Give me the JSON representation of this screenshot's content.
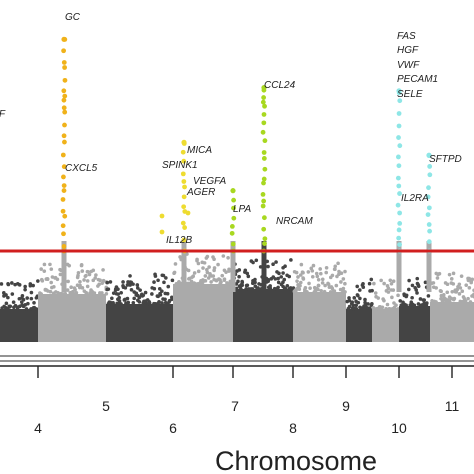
{
  "chart_data": {
    "type": "scatter",
    "subtype": "manhattan",
    "xlabel": "Chromosome",
    "visible_chromosomes": [
      "4",
      "5",
      "6",
      "7",
      "8",
      "9",
      "10",
      "11"
    ],
    "significance_threshold_color": "#d11f1f",
    "colors": {
      "dark": "#444444",
      "light": "#aaaaaa",
      "hit_orange": "#f0b21a",
      "hit_yellow": "#eedc30",
      "hit_lime": "#a8d820",
      "hit_cyan": "#8ee6e6"
    },
    "signal_columns": [
      {
        "chromosome": "4",
        "color": "hit_orange",
        "y_top": 0.94
      },
      {
        "chromosome": "6",
        "color": "hit_yellow",
        "y_top": 0.62
      },
      {
        "chromosome": "7",
        "color": "hit_lime",
        "y_top": 0.47
      },
      {
        "chromosome": "7",
        "color": "hit_lime",
        "y_top": 0.79
      },
      {
        "chromosome": "10",
        "color": "hit_cyan",
        "y_top": 0.78
      },
      {
        "chromosome": "10",
        "color": "hit_cyan",
        "y_top": 0.58
      }
    ],
    "gene_labels": [
      {
        "text": "GC",
        "chromosome": "4"
      },
      {
        "text": "CXCL5",
        "chromosome": "4"
      },
      {
        "text": "MICA",
        "chromosome": "6"
      },
      {
        "text": "SPINK1",
        "chromosome": "6"
      },
      {
        "text": "VEGFA",
        "chromosome": "6"
      },
      {
        "text": "AGER",
        "chromosome": "6"
      },
      {
        "text": "IL12B",
        "chromosome": "6"
      },
      {
        "text": "LPA",
        "chromosome": "7"
      },
      {
        "text": "CCL24",
        "chromosome": "7"
      },
      {
        "text": "NRCAM",
        "chromosome": "7"
      },
      {
        "text": "FAS",
        "chromosome": "10"
      },
      {
        "text": "HGF",
        "chromosome": "10"
      },
      {
        "text": "VWF",
        "chromosome": "10"
      },
      {
        "text": "PECAM1",
        "chromosome": "10"
      },
      {
        "text": "SELE",
        "chromosome": "10"
      },
      {
        "text": "IL2RA",
        "chromosome": "10"
      },
      {
        "text": "SFTPD",
        "chromosome": "10"
      },
      {
        "text": "F",
        "chromosome": "3"
      }
    ]
  }
}
